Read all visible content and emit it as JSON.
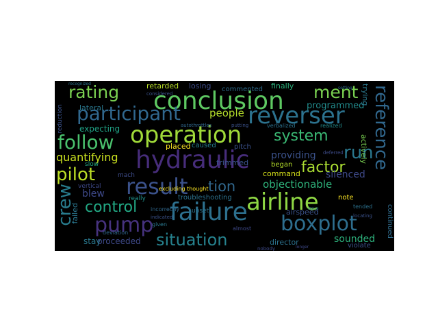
{
  "cloud": {
    "background": "#000000",
    "words": [
      {
        "text": "conclusion",
        "color": "#5ec962"
      },
      {
        "text": "reverser",
        "color": "#2c728e"
      },
      {
        "text": "operation",
        "color": "#a0da39"
      },
      {
        "text": "hydraulic",
        "color": "#472d7b"
      },
      {
        "text": "result",
        "color": "#3b528b"
      },
      {
        "text": "tion",
        "color": "#31688e"
      },
      {
        "text": "airline",
        "color": "#8fd744"
      },
      {
        "text": "failure",
        "color": "#2d708e"
      },
      {
        "text": "boxplot",
        "color": "#2e6e8e"
      },
      {
        "text": "pump",
        "color": "#46327e"
      },
      {
        "text": "participant",
        "color": "#31688e"
      },
      {
        "text": "rating",
        "color": "#7ad151"
      },
      {
        "text": "ment",
        "color": "#7ad151"
      },
      {
        "text": "follow",
        "color": "#4ac16d"
      },
      {
        "text": "system",
        "color": "#3bbb75"
      },
      {
        "text": "run",
        "color": "#2a788e"
      },
      {
        "text": "factor",
        "color": "#aadc32"
      },
      {
        "text": "pilot",
        "color": "#bddf26"
      },
      {
        "text": "situation",
        "color": "#26828e"
      },
      {
        "text": "control",
        "color": "#22a884"
      },
      {
        "text": "crew",
        "color": "#287c8e"
      },
      {
        "text": "reference",
        "color": "#31688e"
      },
      {
        "text": "quantifying",
        "color": "#cae11f"
      },
      {
        "text": "objectionable",
        "color": "#2fb47c"
      },
      {
        "text": "people",
        "color": "#b5de2b"
      },
      {
        "text": "programmed",
        "color": "#228c8d"
      },
      {
        "text": "providing",
        "color": "#3b528b"
      },
      {
        "text": "silenced",
        "color": "#3e4a89"
      },
      {
        "text": "expecting",
        "color": "#20a386"
      },
      {
        "text": "lateral",
        "color": "#2a788e"
      },
      {
        "text": "retarded",
        "color": "#b8de29"
      },
      {
        "text": "losing",
        "color": "#3e4c8a"
      },
      {
        "text": "finally",
        "color": "#2db27d"
      },
      {
        "text": "commented",
        "color": "#2f6c8e"
      },
      {
        "text": "actively",
        "color": "#7ad151"
      },
      {
        "text": "trying",
        "color": "#2a788e"
      },
      {
        "text": "placed",
        "color": "#fde725"
      },
      {
        "text": "caused",
        "color": "#277f8e"
      },
      {
        "text": "trimmed",
        "color": "#3b528b"
      },
      {
        "text": "began",
        "color": "#b5de2b"
      },
      {
        "text": "command",
        "color": "#d8e219"
      },
      {
        "text": "blew",
        "color": "#3e4989"
      },
      {
        "text": "troubleshooting",
        "color": "#2c728e"
      },
      {
        "text": "note",
        "color": "#fde725"
      },
      {
        "text": "airspeed",
        "color": "#3b528b"
      },
      {
        "text": "sounded",
        "color": "#2db27d"
      },
      {
        "text": "director",
        "color": "#2c728e"
      },
      {
        "text": "proceeded",
        "color": "#3e4989"
      },
      {
        "text": "stay",
        "color": "#2a788e"
      },
      {
        "text": "failed",
        "color": "#2a768e"
      },
      {
        "text": "continued",
        "color": "#2f6c8e"
      },
      {
        "text": "violate",
        "color": "#3b528b"
      },
      {
        "text": "slow",
        "color": "#22a884"
      },
      {
        "text": "pitch",
        "color": "#3b528b"
      },
      {
        "text": "mach",
        "color": "#3e4c8a"
      },
      {
        "text": "upset",
        "color": "#2c728e"
      },
      {
        "text": "vertical",
        "color": "#3e4989"
      },
      {
        "text": "reduction",
        "color": "#3b528b"
      },
      {
        "text": "really",
        "color": "#21918c"
      },
      {
        "text": "excluding thought",
        "color": "#fde725"
      },
      {
        "text": "deviation",
        "color": "#31688e"
      },
      {
        "text": "tended",
        "color": "#2c728e"
      },
      {
        "text": "locating",
        "color": "#3b528b"
      },
      {
        "text": "nobody",
        "color": "#3e4a89"
      },
      {
        "text": "verbalized",
        "color": "#2c728e"
      },
      {
        "text": "realized",
        "color": "#228c8d"
      },
      {
        "text": "given",
        "color": "#2a788e"
      },
      {
        "text": "incorrectly",
        "color": "#31688e"
      },
      {
        "text": "indicated",
        "color": "#3b528b"
      },
      {
        "text": "almost",
        "color": "#3e4989"
      },
      {
        "text": "deferred",
        "color": "#3e4c8a"
      },
      {
        "text": "considered",
        "color": "#3b528b"
      },
      {
        "text": "recognized",
        "color": "#2c728e"
      },
      {
        "text": "autothrottles",
        "color": "#31688e"
      },
      {
        "text": "putting",
        "color": "#3b528b"
      },
      {
        "text": "setting",
        "color": "#2f6c8e"
      },
      {
        "text": "longer",
        "color": "#3e4989"
      },
      {
        "text": "issue",
        "color": "#2a788e"
      }
    ]
  }
}
